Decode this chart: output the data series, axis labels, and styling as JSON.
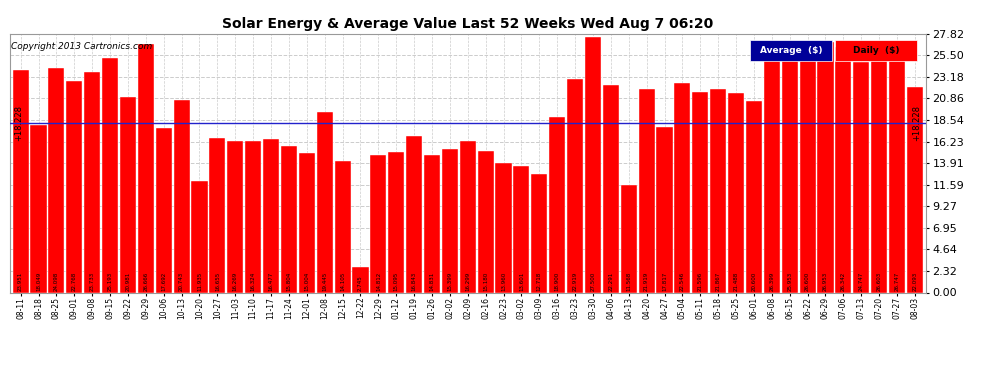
{
  "title": "Solar Energy & Average Value Last 52 Weeks Wed Aug 7 06:20",
  "copyright": "Copyright 2013 Cartronics.com",
  "average_value": 18.228,
  "bar_color": "#ff0000",
  "average_line_color": "#2222cc",
  "background_color": "#ffffff",
  "plot_bg_color": "#ffffff",
  "ylim_max": 27.82,
  "yticks": [
    0.0,
    2.32,
    4.64,
    6.95,
    9.27,
    11.59,
    13.91,
    16.23,
    18.54,
    20.86,
    23.18,
    25.5,
    27.82
  ],
  "categories": [
    "08-11",
    "08-18",
    "08-25",
    "09-01",
    "09-08",
    "09-15",
    "09-22",
    "09-29",
    "10-06",
    "10-13",
    "10-20",
    "10-27",
    "11-03",
    "11-10",
    "11-17",
    "11-24",
    "12-01",
    "12-08",
    "12-15",
    "12-22",
    "12-29",
    "01-12",
    "01-19",
    "01-26",
    "02-02",
    "02-09",
    "02-16",
    "02-23",
    "03-02",
    "03-09",
    "03-16",
    "03-23",
    "03-30",
    "04-06",
    "04-13",
    "04-20",
    "04-27",
    "05-04",
    "05-11",
    "05-18",
    "05-25",
    "06-01",
    "06-08",
    "06-15",
    "06-22",
    "06-29",
    "07-06",
    "07-13",
    "07-20",
    "07-27",
    "08-03"
  ],
  "values": [
    23.951,
    18.049,
    24.098,
    22.768,
    23.733,
    25.193,
    20.981,
    26.666,
    17.692,
    20.743,
    11.935,
    16.655,
    16.269,
    16.324,
    16.477,
    15.804,
    15.004,
    19.445,
    14.105,
    2.745,
    14.812,
    15.095,
    16.843,
    14.831,
    15.399,
    16.299,
    15.18,
    13.96,
    13.601,
    12.718,
    18.9,
    22.919,
    27.5,
    22.291,
    11.568,
    21.919,
    17.817,
    22.546,
    21.596,
    21.867,
    21.488,
    20.6,
    26.399,
    25.953,
    26.6,
    26.953,
    26.342,
    24.747,
    26.603,
    26.747,
    22.093
  ],
  "legend_avg_color": "#000099",
  "legend_daily_color": "#ff0000",
  "grid_color": "#cccccc"
}
